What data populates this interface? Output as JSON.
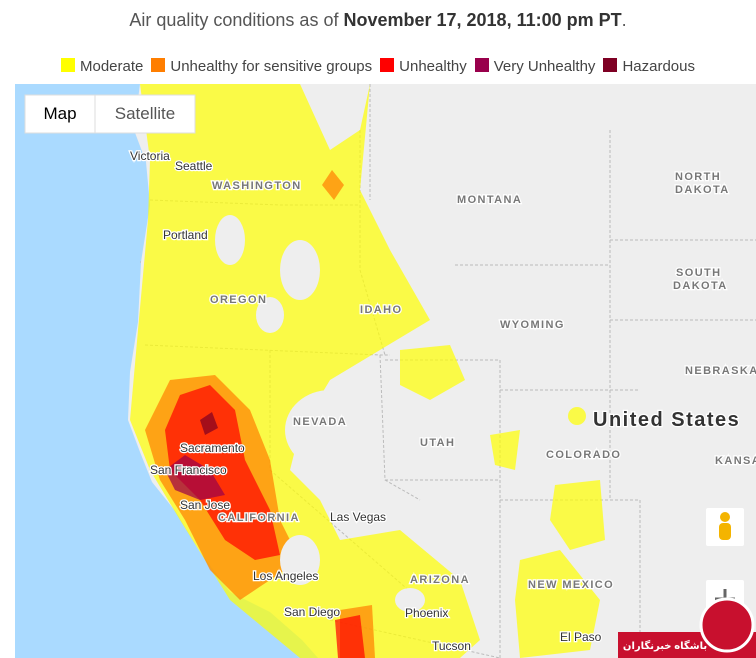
{
  "header": {
    "title_start": "Air quality conditions as of ",
    "title_date": "November 17, 2018, 11:00 pm PT",
    "title_end": "."
  },
  "legend": [
    {
      "label": "Moderate",
      "color": "#ffff00"
    },
    {
      "label": "Unhealthy for sensitive groups",
      "color": "#ff7e00"
    },
    {
      "label": "Unhealthy",
      "color": "#ff0000"
    },
    {
      "label": "Very Unhealthy",
      "color": "#99004c"
    },
    {
      "label": "Hazardous",
      "color": "#7e0023"
    }
  ],
  "map_controls": {
    "map": "Map",
    "satellite": "Satellite"
  },
  "labels": [
    {
      "text": "Victoria",
      "kind": "city"
    },
    {
      "text": "Seattle",
      "kind": "city"
    },
    {
      "text": "WASHINGTON",
      "kind": "state"
    },
    {
      "text": "Portland",
      "kind": "city"
    },
    {
      "text": "OREGON",
      "kind": "state"
    },
    {
      "text": "IDAHO",
      "kind": "state"
    },
    {
      "text": "MONTANA",
      "kind": "state"
    },
    {
      "text": "NORTH",
      "kind": "state"
    },
    {
      "text": "DAKOTA",
      "kind": "state"
    },
    {
      "text": "SOUTH",
      "kind": "state"
    },
    {
      "text": "DAKOTA",
      "kind": "state"
    },
    {
      "text": "WYOMING",
      "kind": "state"
    },
    {
      "text": "NEBRASKA",
      "kind": "state"
    },
    {
      "text": "NEVADA",
      "kind": "state"
    },
    {
      "text": "UTAH",
      "kind": "state"
    },
    {
      "text": "COLORADO",
      "kind": "state"
    },
    {
      "text": "KANSAS",
      "kind": "state"
    },
    {
      "text": "United States",
      "kind": "country"
    },
    {
      "text": "Sacramento",
      "kind": "city"
    },
    {
      "text": "San Francisco",
      "kind": "city"
    },
    {
      "text": "San Jose",
      "kind": "city"
    },
    {
      "text": "CALIFORNIA",
      "kind": "state"
    },
    {
      "text": "Las Vegas",
      "kind": "city"
    },
    {
      "text": "Los Angeles",
      "kind": "city"
    },
    {
      "text": "ARIZONA",
      "kind": "state"
    },
    {
      "text": "San Diego",
      "kind": "city"
    },
    {
      "text": "Phoenix",
      "kind": "city"
    },
    {
      "text": "NEW MEXICO",
      "kind": "state"
    },
    {
      "text": "El Paso",
      "kind": "city"
    },
    {
      "text": "Tucson",
      "kind": "city"
    }
  ],
  "watermark": "باشگاه خبرنگاران"
}
